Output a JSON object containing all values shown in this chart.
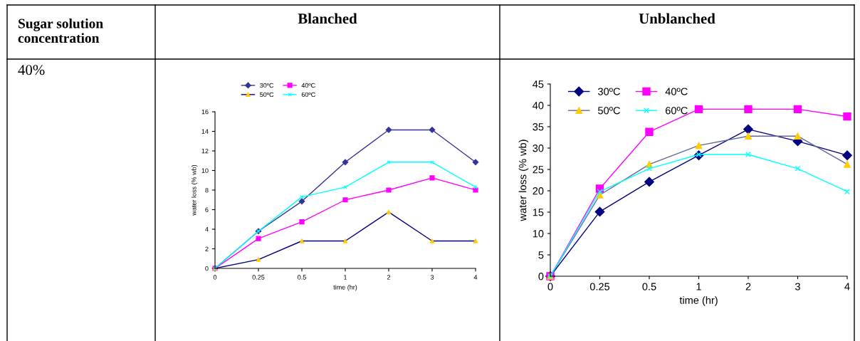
{
  "chart_data": [
    {
      "type": "line",
      "title": "Blanched",
      "xlabel": "time (hr)",
      "ylabel": "water loss (% wb)",
      "annotations": [
        "Sugar solution concentration",
        "40%"
      ],
      "categories": [
        "0",
        "0.25",
        "0.5",
        "1",
        "2",
        "3",
        "4"
      ],
      "ylim": [
        0,
        16
      ],
      "yticks": [
        0,
        2,
        4,
        6,
        8,
        10,
        12,
        14,
        16
      ],
      "grid": false,
      "legend": "top",
      "series": [
        {
          "name": "30ºC",
          "color": "#333399",
          "marker": "diamond",
          "values": [
            0,
            3.8,
            6.85,
            10.85,
            14.15,
            14.15,
            10.85
          ]
        },
        {
          "name": "40ºC",
          "color": "#ff00ff",
          "marker": "square",
          "values": [
            0,
            3.05,
            4.75,
            7.0,
            8.0,
            9.25,
            8.0
          ]
        },
        {
          "name": "50ºC",
          "color": "#000080",
          "marker": "triangle",
          "values": [
            0,
            0.9,
            2.8,
            2.8,
            5.75,
            2.8,
            2.8
          ]
        },
        {
          "name": "60ºC",
          "color": "#00ffff",
          "marker": "cross",
          "values": [
            0,
            3.8,
            7.3,
            8.3,
            10.85,
            10.85,
            8.3
          ]
        }
      ]
    },
    {
      "type": "line",
      "title": "Unblanched",
      "xlabel": "time (hr)",
      "ylabel": "water loss (% wb)",
      "categories": [
        "0",
        "0.25",
        "0.5",
        "1",
        "2",
        "3",
        "4"
      ],
      "ylim": [
        0,
        45
      ],
      "yticks": [
        0,
        5,
        10,
        15,
        20,
        25,
        30,
        35,
        40,
        45
      ],
      "grid": false,
      "legend": "top left",
      "series": [
        {
          "name": "30ºC",
          "color": "#000080",
          "marker": "diamond",
          "values": [
            0,
            15.1,
            22.1,
            28.3,
            34.4,
            31.6,
            28.3
          ]
        },
        {
          "name": "40ºC",
          "color": "#ff00ff",
          "marker": "square",
          "values": [
            0,
            20.5,
            33.8,
            39.1,
            39.1,
            39.1,
            37.4
          ]
        },
        {
          "name": "50ºC",
          "color": "#666699",
          "marker": "triangle",
          "values": [
            0,
            19.0,
            26.2,
            30.6,
            32.8,
            32.8,
            26.2
          ]
        },
        {
          "name": "60ºC",
          "color": "#00ffff",
          "marker": "cross",
          "values": [
            0,
            19.8,
            25.2,
            28.5,
            28.5,
            25.2,
            19.8
          ]
        }
      ]
    }
  ]
}
